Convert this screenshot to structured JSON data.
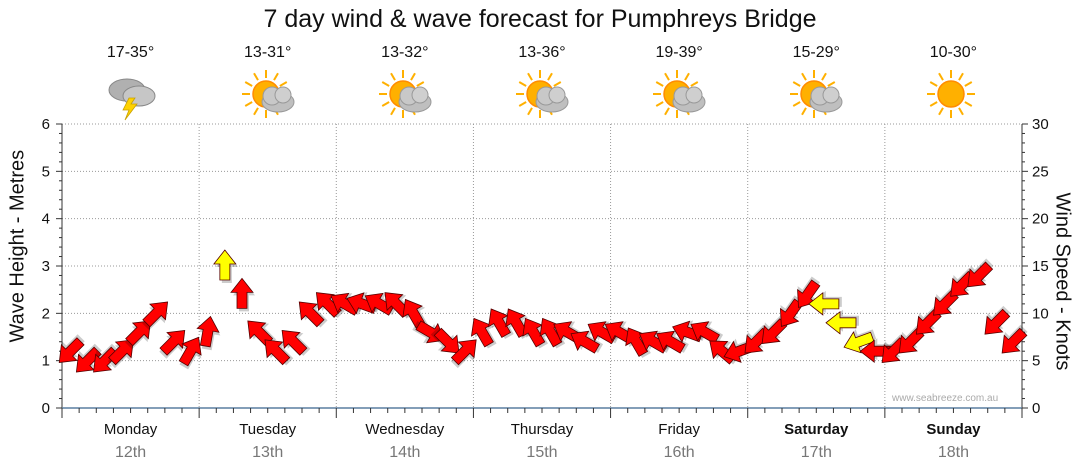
{
  "title": "7 day wind & wave forecast for Pumphreys Bridge",
  "days": [
    {
      "name": "Monday",
      "date": "12th",
      "temp": "17-35°",
      "icon": "storm-cloud-icon",
      "bold": false
    },
    {
      "name": "Tuesday",
      "date": "13th",
      "temp": "13-31°",
      "icon": "partly-cloudy-icon",
      "bold": false
    },
    {
      "name": "Wednesday",
      "date": "14th",
      "temp": "13-32°",
      "icon": "partly-cloudy-icon",
      "bold": false
    },
    {
      "name": "Thursday",
      "date": "15th",
      "temp": "13-36°",
      "icon": "partly-cloudy-icon",
      "bold": false
    },
    {
      "name": "Friday",
      "date": "16th",
      "temp": "19-39°",
      "icon": "partly-cloudy-icon",
      "bold": false
    },
    {
      "name": "Saturday",
      "date": "17th",
      "temp": "15-29°",
      "icon": "partly-cloudy-icon",
      "bold": true
    },
    {
      "name": "Sunday",
      "date": "18th",
      "temp": "10-30°",
      "icon": "sunny-icon",
      "bold": true
    }
  ],
  "watermark": "www.seabreeze.com.au",
  "colors": {
    "arrow": "#ff0000",
    "arrow_highlight": "#ffff00",
    "axis_line": "#333333",
    "grid": "#999999"
  },
  "chart_data": {
    "type": "line",
    "title": "7 day wind & wave forecast for Pumphreys Bridge",
    "ylabel_left": "Wave Height - Metres",
    "ylabel_right": "Wind Speed - Knots",
    "ylim_left": [
      0,
      6
    ],
    "ylim_right": [
      0,
      30
    ],
    "yticks_left": [
      "0",
      "1",
      "2",
      "3",
      "4",
      "5",
      "6"
    ],
    "yticks_right": [
      "0",
      "5",
      "10",
      "15",
      "20",
      "25",
      "30"
    ],
    "grid": true,
    "series": [
      {
        "name": "Wind Speed - Knots",
        "x_hours": [
          0,
          3,
          6,
          9,
          12,
          15,
          18,
          21,
          24,
          27,
          30,
          33,
          36,
          39,
          42,
          45,
          48,
          51,
          54,
          57,
          60,
          63,
          66,
          69,
          72,
          75,
          78,
          81,
          84,
          87,
          90,
          93,
          96,
          99,
          102,
          105,
          108,
          111,
          114,
          117,
          120,
          123,
          126,
          129,
          132,
          135,
          138,
          141,
          144,
          147,
          150,
          153,
          156,
          159,
          162,
          165
        ],
        "values": [
          6,
          5,
          5,
          6,
          8,
          10,
          7,
          6,
          8,
          15,
          12,
          8,
          6,
          7,
          10,
          11,
          11,
          11,
          11,
          11,
          10,
          8,
          7,
          6,
          8,
          9,
          9,
          8,
          8,
          8,
          7,
          8,
          8,
          7,
          7,
          7,
          8,
          8,
          6,
          6,
          7,
          8,
          10,
          12,
          11,
          9,
          7,
          6,
          6,
          7,
          9,
          11,
          13,
          14,
          9,
          7
        ],
        "dir_deg": [
          225,
          225,
          225,
          45,
          45,
          45,
          45,
          30,
          10,
          0,
          0,
          315,
          315,
          315,
          315,
          315,
          300,
          290,
          300,
          315,
          330,
          120,
          135,
          45,
          330,
          330,
          330,
          330,
          330,
          300,
          300,
          300,
          300,
          330,
          300,
          300,
          290,
          300,
          310,
          250,
          225,
          225,
          215,
          215,
          270,
          270,
          250,
          270,
          225,
          225,
          225,
          225,
          225,
          225,
          225,
          225
        ],
        "highlight": [
          false,
          false,
          false,
          false,
          false,
          false,
          false,
          false,
          false,
          true,
          false,
          false,
          false,
          false,
          false,
          false,
          false,
          false,
          false,
          false,
          false,
          false,
          false,
          false,
          false,
          false,
          false,
          false,
          false,
          false,
          false,
          false,
          false,
          false,
          false,
          false,
          false,
          false,
          false,
          false,
          false,
          false,
          false,
          false,
          true,
          true,
          true,
          false,
          false,
          false,
          false,
          false,
          false,
          false,
          false,
          false
        ]
      }
    ]
  }
}
